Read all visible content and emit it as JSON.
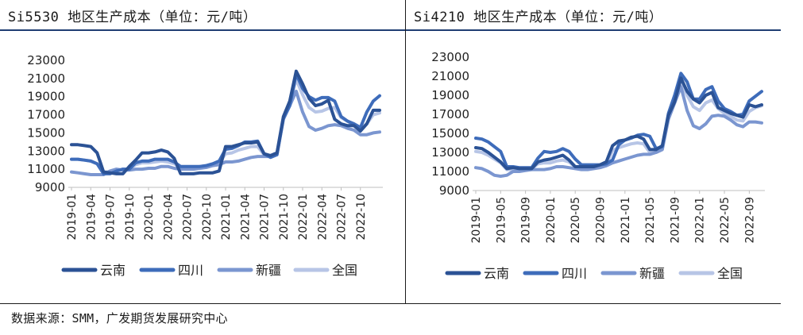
{
  "source_text": "数据来源：SMM，广发期货发展研究中心",
  "colors": {
    "yunnan": "#2b5295",
    "sichuan": "#3e6cba",
    "xinjiang": "#7b96d0",
    "quanguo": "#b7c5e6",
    "title_rule": "#1f3e73"
  },
  "chart_data": [
    {
      "type": "line",
      "title": "Si5530 地区生产成本（单位：元/吨）",
      "ylim": [
        9000,
        23000
      ],
      "yticks": [
        9000,
        11000,
        13000,
        15000,
        17000,
        19000,
        21000,
        23000
      ],
      "x_start": "2019-01",
      "x_tick_labels": [
        "2019-01",
        "2019-04",
        "2019-07",
        "2019-10",
        "2020-01",
        "2020-04",
        "2020-07",
        "2020-10",
        "2021-01",
        "2021-04",
        "2021-07",
        "2021-10",
        "2022-01",
        "2022-04",
        "2022-07",
        "2022-10"
      ],
      "legend_position": "bottom",
      "series": [
        {
          "name": "云南",
          "color_key": "yunnan",
          "values": [
            13700,
            13700,
            13600,
            13500,
            12800,
            10700,
            10600,
            10500,
            10500,
            11300,
            12000,
            12800,
            12800,
            12900,
            13100,
            12900,
            12200,
            10500,
            10500,
            10500,
            10600,
            10600,
            10600,
            10800,
            13500,
            13500,
            13700,
            13900,
            13900,
            14000,
            12700,
            12500,
            12800,
            16800,
            18500,
            21800,
            20400,
            18800,
            18000,
            18200,
            18600,
            16500,
            16000,
            15800,
            15800,
            15200,
            16000,
            17500,
            17500
          ]
        },
        {
          "name": "四川",
          "color_key": "sichuan",
          "values": [
            12100,
            12100,
            12000,
            11900,
            11600,
            10500,
            10500,
            10800,
            11000,
            11000,
            11700,
            11900,
            11900,
            12100,
            12100,
            12100,
            11800,
            11300,
            11300,
            11300,
            11300,
            11400,
            11600,
            11900,
            13200,
            13300,
            13600,
            14000,
            14000,
            14100,
            12700,
            12300,
            12600,
            16600,
            18000,
            21500,
            19900,
            19000,
            18600,
            18900,
            18900,
            18500,
            16800,
            16300,
            16000,
            15600,
            17300,
            18500,
            19100
          ]
        },
        {
          "name": "新疆",
          "color_key": "xinjiang",
          "values": [
            10700,
            10600,
            10500,
            10400,
            10400,
            10400,
            10800,
            11000,
            10900,
            10900,
            11000,
            11000,
            11100,
            11100,
            11300,
            11300,
            11100,
            11000,
            11000,
            11000,
            11100,
            11200,
            11400,
            11500,
            11800,
            11800,
            11900,
            12100,
            12300,
            12400,
            12400,
            12400,
            12600,
            16500,
            18000,
            19600,
            17300,
            15700,
            15300,
            15500,
            15800,
            15900,
            15800,
            15500,
            15300,
            14800,
            14800,
            15000,
            15100
          ]
        },
        {
          "name": "全国",
          "color_key": "quanguo",
          "values": [
            12100,
            12100,
            12000,
            11900,
            11600,
            10700,
            10700,
            10800,
            11000,
            11000,
            11500,
            11700,
            11700,
            11800,
            11900,
            11800,
            11600,
            11200,
            11100,
            11200,
            11300,
            11400,
            11500,
            11700,
            12700,
            12800,
            13100,
            13300,
            13500,
            13500,
            12600,
            12500,
            12800,
            16600,
            18300,
            20900,
            19200,
            17800,
            17300,
            17400,
            17700,
            17800,
            16700,
            16300,
            15800,
            15500,
            16000,
            17000,
            17200
          ]
        }
      ]
    },
    {
      "type": "line",
      "title": "Si4210 地区生产成本（单位：元/吨）",
      "ylim": [
        9000,
        23000
      ],
      "yticks": [
        9000,
        11000,
        13000,
        15000,
        17000,
        19000,
        21000,
        23000
      ],
      "x_start": "2019-01",
      "x_tick_labels": [
        "2019-01",
        "2019-05",
        "2019-09",
        "2020-01",
        "2020-05",
        "2020-09",
        "2021-01",
        "2021-05",
        "2021-09",
        "2022-01",
        "2022-05",
        "2022-09"
      ],
      "legend_position": "bottom",
      "series": [
        {
          "name": "云南",
          "color_key": "yunnan",
          "values": [
            13500,
            13400,
            13000,
            12500,
            12000,
            11300,
            11400,
            11300,
            11300,
            11300,
            12000,
            12200,
            12300,
            12500,
            12700,
            12200,
            11500,
            11500,
            11500,
            11500,
            11700,
            12000,
            13700,
            14200,
            14300,
            14600,
            14700,
            14400,
            13300,
            13300,
            13700,
            16900,
            18300,
            20800,
            19400,
            18600,
            18200,
            19000,
            19300,
            17700,
            17400,
            17100,
            16900,
            16700,
            18000,
            17800,
            18000
          ]
        },
        {
          "name": "四川",
          "color_key": "sichuan",
          "values": [
            14500,
            14400,
            14100,
            13600,
            13100,
            11500,
            11500,
            11400,
            11400,
            11400,
            12400,
            13100,
            13000,
            13100,
            13400,
            13100,
            12300,
            11700,
            11700,
            11700,
            11700,
            11800,
            12200,
            13800,
            14300,
            14500,
            14800,
            14900,
            14700,
            13400,
            13600,
            17100,
            19000,
            21300,
            20400,
            18600,
            18600,
            19600,
            19900,
            18400,
            17600,
            17300,
            16900,
            17000,
            18400,
            18900,
            19400
          ]
        },
        {
          "name": "新疆",
          "color_key": "xinjiang",
          "values": [
            11400,
            11300,
            11000,
            10600,
            10500,
            10600,
            11000,
            11000,
            11100,
            11200,
            11200,
            11200,
            11300,
            11500,
            11500,
            11400,
            11300,
            11200,
            11200,
            11300,
            11400,
            11600,
            11900,
            12100,
            12300,
            12500,
            12700,
            12800,
            12800,
            13000,
            13300,
            16500,
            18200,
            19900,
            17400,
            15800,
            15500,
            16000,
            16800,
            16900,
            16800,
            16400,
            15900,
            15700,
            16200,
            16200,
            16100
          ]
        },
        {
          "name": "全国",
          "color_key": "quanguo",
          "values": [
            13100,
            13000,
            12700,
            12300,
            11900,
            11200,
            11200,
            11300,
            11300,
            11300,
            11800,
            11900,
            11900,
            12100,
            12200,
            12000,
            11500,
            11400,
            11400,
            11400,
            11500,
            11700,
            13200,
            13500,
            13700,
            13900,
            14000,
            13900,
            13000,
            13000,
            13300,
            16700,
            18400,
            20400,
            19000,
            17800,
            17400,
            18200,
            18500,
            17600,
            17100,
            16800,
            16400,
            16300,
            17300,
            17700,
            17900
          ]
        }
      ]
    }
  ]
}
